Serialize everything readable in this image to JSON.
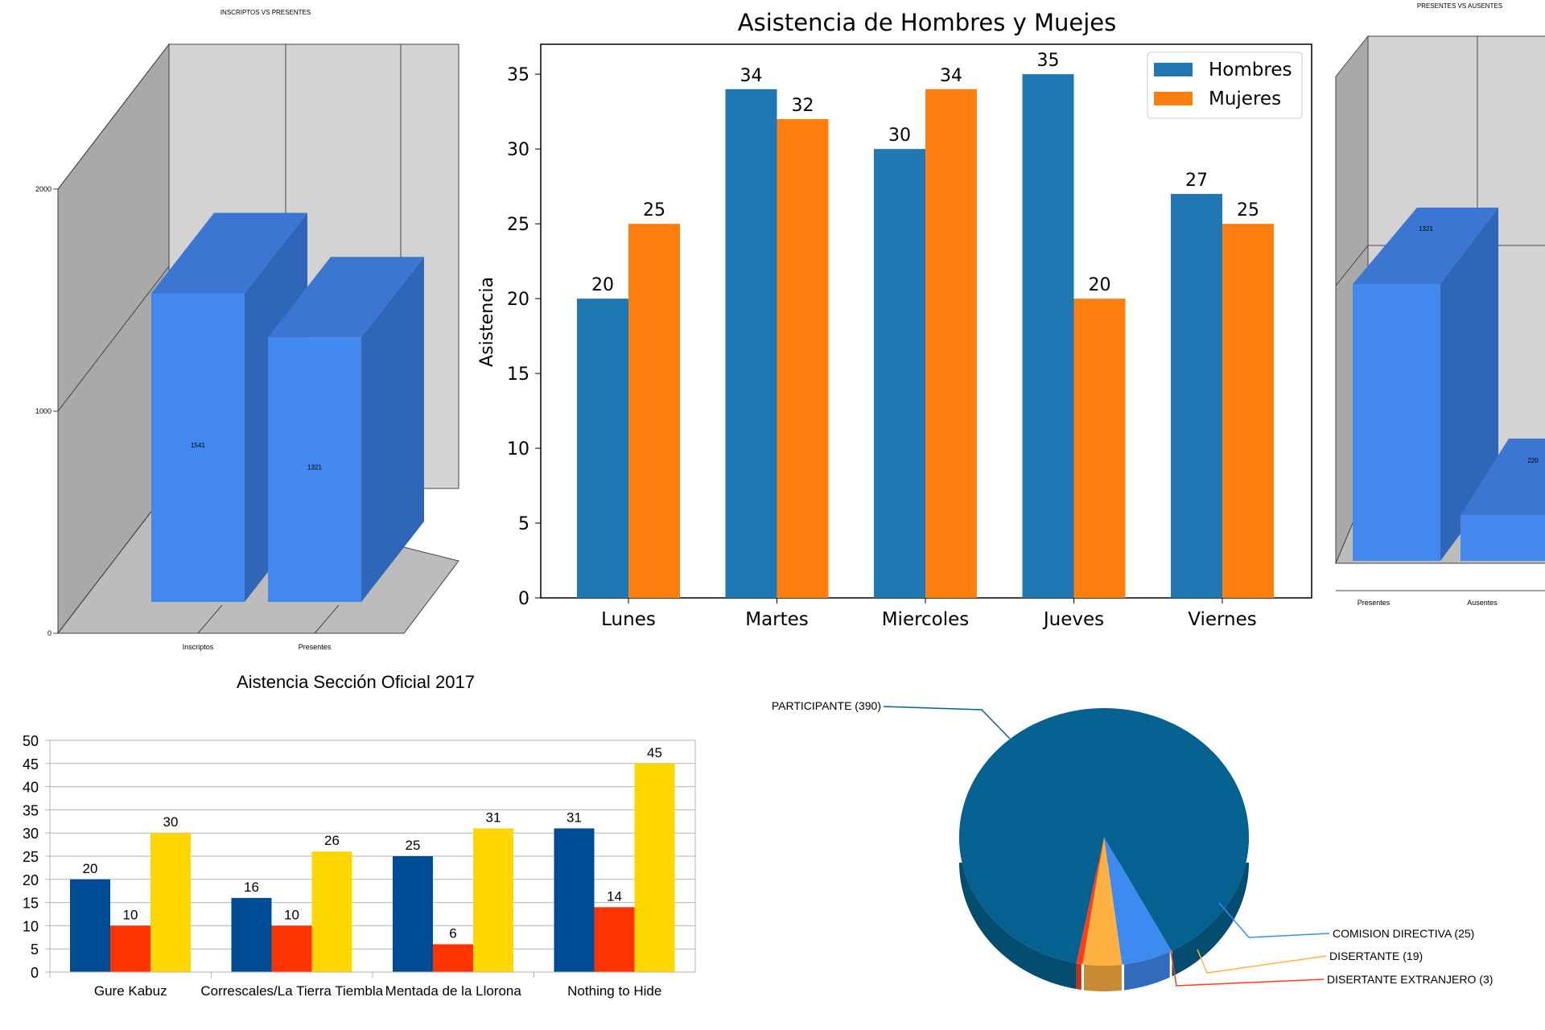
{
  "chart_data": [
    {
      "type": "bar",
      "style": "3d",
      "title": "INSCRIPTOS VS PRESENTES",
      "categories": [
        "Inscriptos",
        "Presentes"
      ],
      "values": [
        1541,
        1321
      ],
      "value_labels": [
        "1541",
        "1321"
      ],
      "yticks": [
        "0",
        "1000",
        "2000"
      ],
      "ylim": [
        0,
        2000
      ],
      "colors": {
        "front": "#4288ee",
        "side": "#2f66b8",
        "top": "#3a76d2",
        "back_wall": "#d3d3d3",
        "side_wall": "#a9a9a9",
        "floor": "#bcbcbc"
      }
    },
    {
      "type": "bar",
      "title": "Asistencia de Hombres y Muejes",
      "ylabel": "Asistencia",
      "categories": [
        "Lunes",
        "Martes",
        "Miercoles",
        "Jueves",
        "Viernes"
      ],
      "ylim": [
        0,
        37
      ],
      "yticks": [
        "0",
        "5",
        "10",
        "15",
        "20",
        "25",
        "30",
        "35"
      ],
      "series": [
        {
          "name": "Hombres",
          "values": [
            20,
            34,
            30,
            35,
            27
          ],
          "labels": [
            "20",
            "34",
            "30",
            "35",
            "27"
          ],
          "color": "#1f77b4"
        },
        {
          "name": "Mujeres",
          "values": [
            25,
            32,
            34,
            20,
            25
          ],
          "labels": [
            "25",
            "32",
            "34",
            "20",
            "25"
          ],
          "color": "#ff7f0e"
        }
      ],
      "legend": "top-right",
      "grid": false
    },
    {
      "type": "bar",
      "style": "3d",
      "title": "PRESENTES VS AUSENTES",
      "categories": [
        "Presentes",
        "Ausentes"
      ],
      "values": [
        1321,
        220
      ],
      "value_labels": [
        "1321",
        "220"
      ],
      "colors": {
        "front": "#4288ee",
        "side": "#2f66b8",
        "top": "#3a76d2"
      }
    },
    {
      "type": "bar",
      "title": "Aistencia Sección Oficial 2017",
      "categories": [
        "Gure Kabuz",
        "Correscales/La Tierra Tiembla",
        "Mentada de la Llorona",
        "Nothing to Hide"
      ],
      "ylim": [
        0,
        50
      ],
      "yticks": [
        "0",
        "5",
        "10",
        "15",
        "20",
        "25",
        "30",
        "35",
        "40",
        "45",
        "50"
      ],
      "series": [
        {
          "values": [
            20,
            16,
            25,
            31
          ],
          "labels": [
            "20",
            "16",
            "25",
            "31"
          ],
          "color": "#004c94"
        },
        {
          "values": [
            10,
            10,
            6,
            14
          ],
          "labels": [
            "10",
            "10",
            "6",
            "14"
          ],
          "color": "#ff3300"
        },
        {
          "values": [
            30,
            26,
            31,
            45
          ],
          "labels": [
            "30",
            "26",
            "31",
            "45"
          ],
          "color": "#ffd700"
        }
      ],
      "grid": true
    },
    {
      "type": "pie",
      "style": "3d",
      "slices": [
        {
          "label": "PARTICIPANTE (390)",
          "value": 390,
          "color": "#05618f"
        },
        {
          "label": "COMISION DIRECTIVA (25)",
          "value": 25,
          "color": "#3d8bf0"
        },
        {
          "label": "DISERTANTE (19)",
          "value": 19,
          "color": "#ffb241"
        },
        {
          "label": "DISERTANTE EXTRANJERO (3)",
          "value": 3,
          "color": "#ff3b1a"
        }
      ]
    }
  ]
}
